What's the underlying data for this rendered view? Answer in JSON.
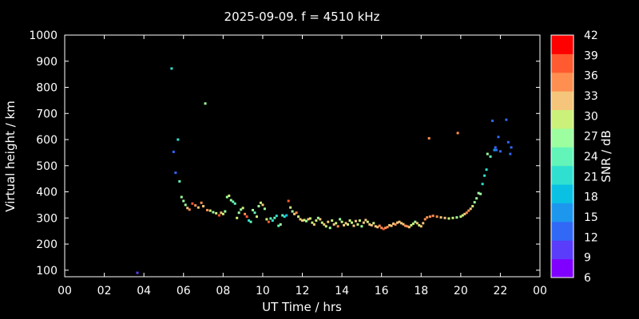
{
  "chart_data": {
    "type": "scatter",
    "title": "2025-09-09. f = 4510 kHz",
    "xlabel": "UT Time / hrs",
    "ylabel": "Virtual height / km",
    "colorbar_label": "SNR / dB",
    "xlim": [
      0,
      24
    ],
    "ylim": [
      75,
      1000
    ],
    "x_tick_labels": [
      "00",
      "02",
      "04",
      "06",
      "08",
      "10",
      "12",
      "14",
      "16",
      "18",
      "20",
      "22",
      "00"
    ],
    "y_ticks": [
      100,
      200,
      300,
      400,
      500,
      600,
      700,
      800,
      900,
      1000
    ],
    "colorbar_ticks": [
      6,
      9,
      12,
      15,
      18,
      21,
      24,
      27,
      30,
      33,
      36,
      39,
      42
    ],
    "colorbar_colors": [
      "#7f00ff",
      "#5a3cfb",
      "#3168f6",
      "#1d96ee",
      "#0ac1e3",
      "#2fe0d0",
      "#62f4b8",
      "#9cfe9e",
      "#cbf17a",
      "#f4c57a",
      "#ff8f50",
      "#ff5a30",
      "#ff0000"
    ],
    "colorbar_range": [
      6,
      42
    ],
    "points": [
      [
        3.67,
        90,
        9
      ],
      [
        5.4,
        872,
        20
      ],
      [
        5.5,
        553,
        13
      ],
      [
        5.6,
        473,
        13
      ],
      [
        5.72,
        600,
        22
      ],
      [
        5.8,
        440,
        24
      ],
      [
        5.9,
        380,
        26
      ],
      [
        6.0,
        365,
        27
      ],
      [
        6.1,
        350,
        28
      ],
      [
        6.2,
        338,
        32
      ],
      [
        6.3,
        332,
        34
      ],
      [
        6.45,
        355,
        37
      ],
      [
        6.6,
        348,
        36
      ],
      [
        6.75,
        340,
        33
      ],
      [
        6.9,
        358,
        35
      ],
      [
        7.0,
        345,
        31
      ],
      [
        7.1,
        738,
        26
      ],
      [
        7.2,
        330,
        35
      ],
      [
        7.35,
        328,
        30
      ],
      [
        7.5,
        322,
        28
      ],
      [
        7.65,
        318,
        30
      ],
      [
        7.8,
        310,
        37
      ],
      [
        7.9,
        320,
        33
      ],
      [
        8.0,
        315,
        30
      ],
      [
        8.1,
        325,
        28
      ],
      [
        8.2,
        380,
        27
      ],
      [
        8.3,
        385,
        29
      ],
      [
        8.4,
        368,
        26
      ],
      [
        8.5,
        362,
        24
      ],
      [
        8.6,
        355,
        25
      ],
      [
        8.7,
        300,
        30
      ],
      [
        8.8,
        320,
        28
      ],
      [
        8.9,
        332,
        27
      ],
      [
        9.0,
        338,
        29
      ],
      [
        9.1,
        315,
        35
      ],
      [
        9.2,
        305,
        38
      ],
      [
        9.3,
        290,
        20
      ],
      [
        9.4,
        285,
        23
      ],
      [
        9.5,
        330,
        26
      ],
      [
        9.6,
        320,
        25
      ],
      [
        9.7,
        305,
        30
      ],
      [
        9.8,
        345,
        28
      ],
      [
        9.9,
        358,
        30
      ],
      [
        10.0,
        350,
        32
      ],
      [
        10.1,
        335,
        28
      ],
      [
        10.2,
        295,
        30
      ],
      [
        10.3,
        285,
        37
      ],
      [
        10.4,
        298,
        25
      ],
      [
        10.5,
        290,
        22
      ],
      [
        10.6,
        300,
        24
      ],
      [
        10.7,
        308,
        20
      ],
      [
        10.8,
        270,
        24
      ],
      [
        10.9,
        275,
        28
      ],
      [
        11.0,
        310,
        24
      ],
      [
        11.1,
        305,
        20
      ],
      [
        11.2,
        310,
        18
      ],
      [
        11.3,
        365,
        37
      ],
      [
        11.4,
        340,
        30
      ],
      [
        11.5,
        325,
        28
      ],
      [
        11.6,
        315,
        32
      ],
      [
        11.7,
        320,
        34
      ],
      [
        11.8,
        305,
        30
      ],
      [
        11.9,
        295,
        31
      ],
      [
        12.0,
        290,
        33
      ],
      [
        12.1,
        292,
        30
      ],
      [
        12.2,
        288,
        28
      ],
      [
        12.3,
        295,
        31
      ],
      [
        12.4,
        298,
        29
      ],
      [
        12.5,
        282,
        30
      ],
      [
        12.6,
        275,
        32
      ],
      [
        12.7,
        290,
        30
      ],
      [
        12.8,
        300,
        28
      ],
      [
        12.9,
        295,
        31
      ],
      [
        13.0,
        282,
        30
      ],
      [
        13.1,
        275,
        33
      ],
      [
        13.2,
        268,
        30
      ],
      [
        13.3,
        285,
        32
      ],
      [
        13.4,
        262,
        28
      ],
      [
        13.5,
        290,
        30
      ],
      [
        13.6,
        275,
        33
      ],
      [
        13.7,
        280,
        30
      ],
      [
        13.8,
        268,
        34
      ],
      [
        13.9,
        295,
        28
      ],
      [
        14.0,
        285,
        30
      ],
      [
        14.1,
        272,
        33
      ],
      [
        14.2,
        280,
        31
      ],
      [
        14.3,
        275,
        30
      ],
      [
        14.4,
        290,
        29
      ],
      [
        14.5,
        282,
        30
      ],
      [
        14.6,
        270,
        32
      ],
      [
        14.7,
        288,
        31
      ],
      [
        14.8,
        275,
        30
      ],
      [
        14.9,
        290,
        30
      ],
      [
        15.0,
        268,
        28
      ],
      [
        15.1,
        282,
        31
      ],
      [
        15.2,
        292,
        33
      ],
      [
        15.3,
        285,
        30
      ],
      [
        15.4,
        275,
        31
      ],
      [
        15.5,
        272,
        32
      ],
      [
        15.6,
        280,
        30
      ],
      [
        15.7,
        268,
        33
      ],
      [
        15.8,
        265,
        31
      ],
      [
        15.9,
        270,
        34
      ],
      [
        16.0,
        262,
        36
      ],
      [
        16.1,
        258,
        37
      ],
      [
        16.2,
        262,
        35
      ],
      [
        16.3,
        265,
        34
      ],
      [
        16.4,
        272,
        33
      ],
      [
        16.5,
        270,
        32
      ],
      [
        16.6,
        278,
        33
      ],
      [
        16.7,
        275,
        34
      ],
      [
        16.8,
        282,
        33
      ],
      [
        16.9,
        285,
        31
      ],
      [
        17.0,
        280,
        32
      ],
      [
        17.1,
        276,
        31
      ],
      [
        17.2,
        270,
        34
      ],
      [
        17.3,
        268,
        35
      ],
      [
        17.4,
        265,
        33
      ],
      [
        17.5,
        272,
        30
      ],
      [
        17.6,
        278,
        29
      ],
      [
        17.7,
        285,
        28
      ],
      [
        17.8,
        280,
        31
      ],
      [
        17.9,
        272,
        30
      ],
      [
        18.0,
        268,
        32
      ],
      [
        18.1,
        280,
        33
      ],
      [
        18.2,
        295,
        35
      ],
      [
        18.3,
        302,
        36
      ],
      [
        18.4,
        605,
        34
      ],
      [
        18.45,
        305,
        36
      ],
      [
        18.6,
        308,
        36
      ],
      [
        18.8,
        305,
        35
      ],
      [
        19.0,
        302,
        33
      ],
      [
        19.2,
        300,
        32
      ],
      [
        19.4,
        298,
        30
      ],
      [
        19.6,
        300,
        29
      ],
      [
        19.8,
        302,
        28
      ],
      [
        19.85,
        625,
        36
      ],
      [
        20.0,
        305,
        29
      ],
      [
        20.1,
        310,
        30
      ],
      [
        20.2,
        315,
        32
      ],
      [
        20.3,
        320,
        34
      ],
      [
        20.4,
        328,
        36
      ],
      [
        20.5,
        335,
        33
      ],
      [
        20.6,
        345,
        30
      ],
      [
        20.7,
        360,
        27
      ],
      [
        20.8,
        375,
        26
      ],
      [
        20.9,
        395,
        28
      ],
      [
        21.0,
        392,
        27
      ],
      [
        21.1,
        430,
        22
      ],
      [
        21.2,
        462,
        21
      ],
      [
        21.3,
        485,
        20
      ],
      [
        21.35,
        545,
        28
      ],
      [
        21.5,
        535,
        24
      ],
      [
        21.6,
        672,
        12
      ],
      [
        21.7,
        560,
        15
      ],
      [
        21.75,
        570,
        12
      ],
      [
        21.8,
        560,
        13
      ],
      [
        21.9,
        610,
        14
      ],
      [
        22.0,
        555,
        13
      ],
      [
        22.3,
        676,
        12
      ],
      [
        22.4,
        590,
        14
      ],
      [
        22.5,
        545,
        13
      ],
      [
        22.55,
        570,
        12
      ]
    ]
  }
}
